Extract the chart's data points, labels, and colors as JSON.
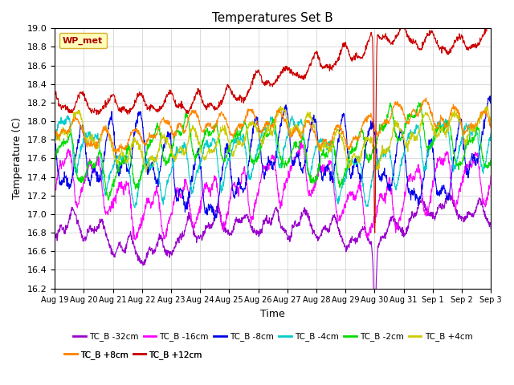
{
  "title": "Temperatures Set B",
  "xlabel": "Time",
  "ylabel": "Temperature (C)",
  "ylim": [
    16.2,
    19.0
  ],
  "yticks": [
    16.2,
    16.4,
    16.6,
    16.8,
    17.0,
    17.2,
    17.4,
    17.6,
    17.8,
    18.0,
    18.2,
    18.4,
    18.6,
    18.8,
    19.0
  ],
  "n_days": 15,
  "n_points": 1440,
  "series_order": [
    "TC_B -32cm",
    "TC_B -16cm",
    "TC_B -8cm",
    "TC_B -4cm",
    "TC_B -2cm",
    "TC_B +4cm",
    "TC_B +8cm",
    "TC_B +12cm"
  ],
  "series": {
    "TC_B -32cm": {
      "color": "#9900cc",
      "base": 16.73,
      "amp": 0.12,
      "daily_amp": 0.1,
      "trend": 0.22,
      "noise": 0.04
    },
    "TC_B -16cm": {
      "color": "#ff00ff",
      "base": 17.15,
      "amp": 0.18,
      "daily_amp": 0.22,
      "trend": 0.18,
      "noise": 0.05
    },
    "TC_B -8cm": {
      "color": "#0000ee",
      "base": 17.48,
      "amp": 0.2,
      "daily_amp": 0.28,
      "trend": 0.16,
      "noise": 0.05
    },
    "TC_B -4cm": {
      "color": "#00cccc",
      "base": 17.55,
      "amp": 0.18,
      "daily_amp": 0.22,
      "trend": 0.15,
      "noise": 0.04
    },
    "TC_B -2cm": {
      "color": "#00dd00",
      "base": 17.65,
      "amp": 0.16,
      "daily_amp": 0.18,
      "trend": 0.14,
      "noise": 0.04
    },
    "TC_B +4cm": {
      "color": "#cccc00",
      "base": 17.75,
      "amp": 0.13,
      "daily_amp": 0.12,
      "trend": 0.13,
      "noise": 0.04
    },
    "TC_B +8cm": {
      "color": "#ff8800",
      "base": 17.88,
      "amp": 0.1,
      "daily_amp": 0.1,
      "trend": 0.12,
      "noise": 0.03
    },
    "TC_B +12cm": {
      "color": "#cc0000",
      "base": 18.08,
      "amp": 0.08,
      "daily_amp": 0.08,
      "trend": 0.55,
      "noise": 0.03
    }
  },
  "legend_label": "WP_met",
  "legend_facecolor": "#ffffaa",
  "legend_edgecolor": "#cc9900",
  "legend_text_color": "#aa0000",
  "background_color": "#ffffff",
  "grid_color": "#cccccc",
  "x_labels": [
    "Aug 19",
    "Aug 20",
    "Aug 21",
    "Aug 22",
    "Aug 23",
    "Aug 24",
    "Aug 25",
    "Aug 26",
    "Aug 27",
    "Aug 28",
    "Aug 29",
    "Aug 30",
    "Aug 31",
    "Sep 1",
    "Sep 2",
    "Sep 3"
  ]
}
